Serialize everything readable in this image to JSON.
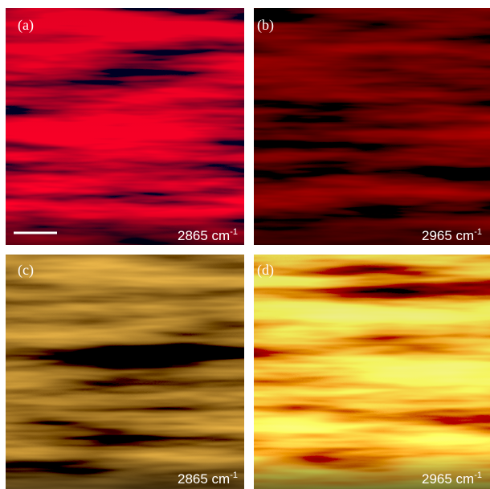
{
  "panels": [
    {
      "label": "(a)",
      "wavenumber": "2865 cm",
      "exponent": "-1"
    },
    {
      "label": "(b)",
      "wavenumber": "2965 cm",
      "exponent": "-1"
    },
    {
      "label": "(c)",
      "wavenumber": "2865 cm",
      "exponent": "-1"
    },
    {
      "label": "(d)",
      "wavenumber": "2965 cm",
      "exponent": "-1"
    }
  ]
}
